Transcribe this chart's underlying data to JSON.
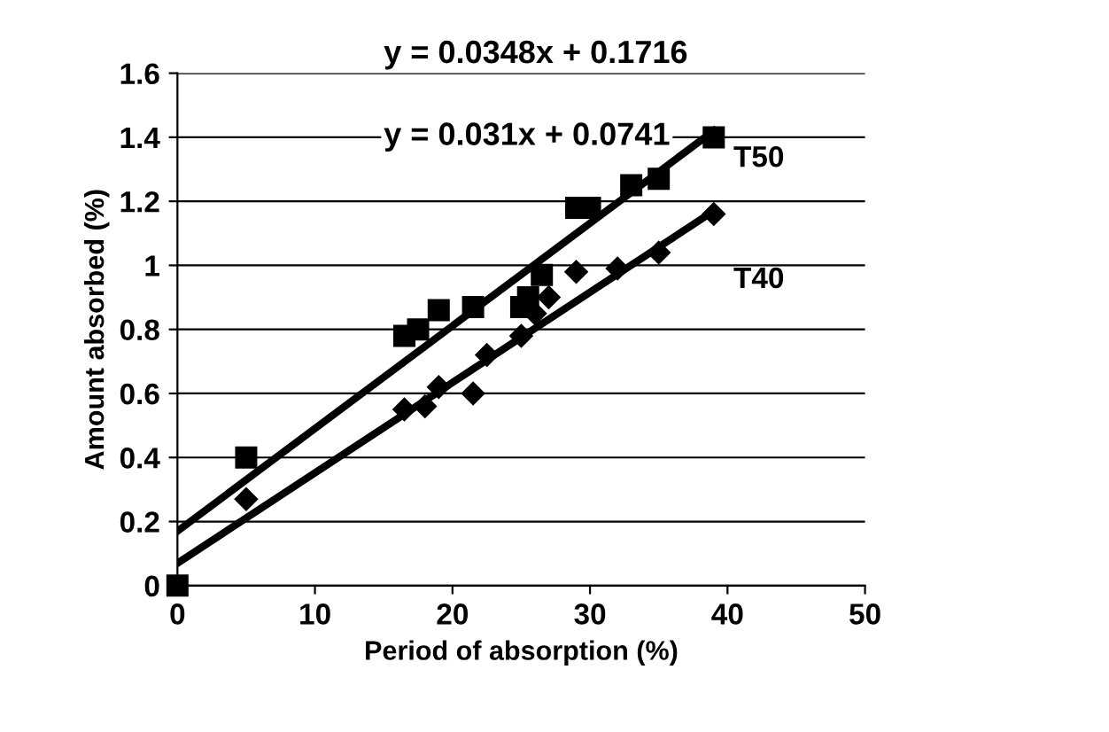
{
  "chart_data": {
    "type": "scatter",
    "xlabel": "Period of absorption (%)",
    "ylabel": "Amount absorbed (%)",
    "xlim": [
      0,
      50
    ],
    "xticks": [
      0,
      10,
      20,
      30,
      40,
      50
    ],
    "ylim": [
      0,
      1.6
    ],
    "yticks": [
      0,
      0.2,
      0.4,
      0.6,
      0.8,
      1,
      1.2,
      1.4,
      1.6
    ],
    "grid": "y",
    "legend": false,
    "series": [
      {
        "name": "T50",
        "color": "#000000",
        "marker": "square",
        "x": [
          0,
          5,
          16.5,
          17.5,
          19,
          21.5,
          25,
          25.5,
          26.5,
          29,
          30,
          33,
          35,
          39
        ],
        "values": [
          0,
          0.4,
          0.78,
          0.8,
          0.86,
          0.87,
          0.87,
          0.9,
          0.97,
          1.18,
          1.18,
          1.25,
          1.27,
          1.4
        ]
      },
      {
        "name": "T40",
        "color": "#000000",
        "marker": "diamond",
        "x": [
          5,
          16.5,
          18,
          19,
          21.5,
          22.5,
          25,
          26,
          27,
          29,
          32,
          35,
          39
        ],
        "values": [
          0.27,
          0.55,
          0.56,
          0.62,
          0.6,
          0.72,
          0.78,
          0.85,
          0.9,
          0.98,
          0.99,
          1.04,
          1.16
        ]
      },
      {
        "type": "line",
        "color": "#000000",
        "marker": "none",
        "x": [
          0,
          39
        ],
        "values": [
          0.17,
          1.42
        ]
      },
      {
        "type": "line",
        "color": "#000000",
        "marker": "none",
        "x": [
          0,
          39
        ],
        "values": [
          0.07,
          1.17
        ]
      }
    ],
    "annotations": [
      "y = 0.0348x + 0.1716",
      "y = 0.031x + 0.0741"
    ]
  }
}
